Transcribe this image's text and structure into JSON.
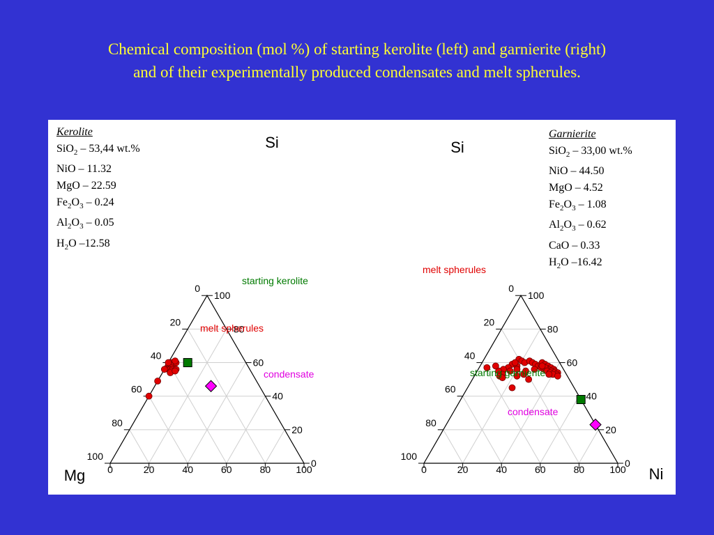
{
  "title": {
    "line1": "Chemical composition (mol %) of starting kerolite (left) and garnierite (right)",
    "line2": "and of their experimentally produced condensates and melt spherules."
  },
  "colors": {
    "background": "#3232d2",
    "title": "#ffff33",
    "melt": "#e00000",
    "starting": "#007a00",
    "condensate": "#ff00ff",
    "melt_label": "#e00000",
    "starting_label": "#007a00",
    "condensate_label": "#e000e0"
  },
  "kerolite": {
    "head": "Kerolite",
    "lines": [
      [
        "SiO",
        "2",
        " – 53,44 wt.%"
      ],
      [
        "NiO – 11.32",
        "",
        ""
      ],
      [
        "MgO – 22.59",
        "",
        ""
      ],
      [
        "Fe",
        "2",
        "O",
        "3",
        " – 0.24"
      ],
      [
        "Al",
        "2",
        "O",
        "3",
        " – 0.05"
      ],
      [
        "H",
        "2",
        "O –12.58"
      ]
    ]
  },
  "garnierite": {
    "head": "Garnierite",
    "lines": [
      [
        "SiO",
        "2",
        " – 33,00 wt.%"
      ],
      [
        "NiO – 44.50",
        "",
        ""
      ],
      [
        "MgO – 4.52",
        "",
        ""
      ],
      [
        "Fe",
        "2",
        "O",
        "3",
        " – 1.08"
      ],
      [
        "Al",
        "2",
        "O",
        "3",
        " – 0.62"
      ],
      [
        "CaO – 0.33",
        "",
        ""
      ],
      [
        "H",
        "2",
        "O –16.42"
      ]
    ]
  },
  "vertex_labels": {
    "si": "Si",
    "mg": "Mg",
    "ni": "Ni"
  },
  "left_tri": {
    "left_ticks": [
      "0",
      "20",
      "40",
      "60",
      "80",
      "100"
    ],
    "right_ticks": [
      "100",
      "80",
      "60",
      "40",
      "20",
      "0"
    ],
    "bottom_ticks": [
      "0",
      "20",
      "40",
      "60",
      "80",
      "100"
    ],
    "labels": {
      "starting": "starting kerolite",
      "melt": "melt spherules",
      "condensate": "condensate"
    }
  },
  "right_tri": {
    "left_ticks": [
      "0",
      "20",
      "40",
      "60",
      "80",
      "100"
    ],
    "right_ticks": [
      "100",
      "80",
      "60",
      "40",
      "20",
      "0"
    ],
    "bottom_ticks": [
      "0",
      "20",
      "40",
      "60",
      "80",
      "100"
    ],
    "labels": {
      "starting": "starting garnierite",
      "melt": "melt spherules",
      "condensate": "condensate"
    }
  },
  "chart_data": [
    {
      "type": "scatter",
      "name": "kerolite",
      "axes": [
        "Si",
        "Mg",
        "Ni"
      ],
      "starting": {
        "si": 60,
        "mg": 30,
        "ni": 10
      },
      "condensate": {
        "si": 46,
        "mg": 25,
        "ni": 29
      },
      "melt": [
        {
          "si": 60,
          "mg": 38,
          "ni": 2
        },
        {
          "si": 60,
          "mg": 39,
          "ni": 1
        },
        {
          "si": 59,
          "mg": 39,
          "ni": 2
        },
        {
          "si": 59,
          "mg": 40,
          "ni": 1
        },
        {
          "si": 58,
          "mg": 41,
          "ni": 1
        },
        {
          "si": 58,
          "mg": 39,
          "ni": 3
        },
        {
          "si": 57,
          "mg": 42,
          "ni": 1
        },
        {
          "si": 57,
          "mg": 41,
          "ni": 2
        },
        {
          "si": 57,
          "mg": 40,
          "ni": 3
        },
        {
          "si": 56,
          "mg": 42,
          "ni": 2
        },
        {
          "si": 56,
          "mg": 41,
          "ni": 3
        },
        {
          "si": 56,
          "mg": 40,
          "ni": 4
        },
        {
          "si": 55,
          "mg": 41,
          "ni": 4
        },
        {
          "si": 56,
          "mg": 38,
          "ni": 6
        },
        {
          "si": 60,
          "mg": 36,
          "ni": 4
        },
        {
          "si": 54,
          "mg": 42,
          "ni": 4
        },
        {
          "si": 55,
          "mg": 39,
          "ni": 6
        },
        {
          "si": 60,
          "mg": 40,
          "ni": 0
        },
        {
          "si": 56,
          "mg": 44,
          "ni": 0
        },
        {
          "si": 61,
          "mg": 36,
          "ni": 3
        },
        {
          "si": 49,
          "mg": 51,
          "ni": 0
        },
        {
          "si": 40,
          "mg": 60,
          "ni": 0
        }
      ]
    },
    {
      "type": "scatter",
      "name": "garnierite",
      "axes": [
        "Si",
        "Mg",
        "Ni"
      ],
      "starting": {
        "si": 38,
        "mg": 0,
        "ni": 62
      },
      "condensate": {
        "si": 23,
        "mg": 0,
        "ni": 77
      },
      "melt": [
        {
          "si": 62,
          "mg": 20,
          "ni": 18
        },
        {
          "si": 61,
          "mg": 19,
          "ni": 20
        },
        {
          "si": 60,
          "mg": 18,
          "ni": 22
        },
        {
          "si": 61,
          "mg": 15,
          "ni": 24
        },
        {
          "si": 60,
          "mg": 14,
          "ni": 26
        },
        {
          "si": 59,
          "mg": 13,
          "ni": 28
        },
        {
          "si": 58,
          "mg": 12,
          "ni": 30
        },
        {
          "si": 57,
          "mg": 11,
          "ni": 32
        },
        {
          "si": 56,
          "mg": 10,
          "ni": 34
        },
        {
          "si": 59,
          "mg": 10,
          "ni": 31
        },
        {
          "si": 58,
          "mg": 9,
          "ni": 33
        },
        {
          "si": 57,
          "mg": 8,
          "ni": 35
        },
        {
          "si": 56,
          "mg": 7,
          "ni": 37
        },
        {
          "si": 55,
          "mg": 6,
          "ni": 39
        },
        {
          "si": 60,
          "mg": 9,
          "ni": 31
        },
        {
          "si": 59,
          "mg": 8,
          "ni": 33
        },
        {
          "si": 58,
          "mg": 7,
          "ni": 35
        },
        {
          "si": 57,
          "mg": 6,
          "ni": 37
        },
        {
          "si": 56,
          "mg": 5,
          "ni": 39
        },
        {
          "si": 55,
          "mg": 5,
          "ni": 40
        },
        {
          "si": 54,
          "mg": 4,
          "ni": 42
        },
        {
          "si": 56,
          "mg": 8,
          "ni": 36
        },
        {
          "si": 55,
          "mg": 7,
          "ni": 38
        },
        {
          "si": 54,
          "mg": 6,
          "ni": 40
        },
        {
          "si": 53,
          "mg": 5,
          "ni": 42
        },
        {
          "si": 57,
          "mg": 9,
          "ni": 34
        },
        {
          "si": 58,
          "mg": 10,
          "ni": 32
        },
        {
          "si": 55,
          "mg": 9,
          "ni": 36
        },
        {
          "si": 54,
          "mg": 8,
          "ni": 38
        },
        {
          "si": 53,
          "mg": 7,
          "ni": 40
        },
        {
          "si": 52,
          "mg": 5,
          "ni": 43
        },
        {
          "si": 53,
          "mg": 9,
          "ni": 38
        },
        {
          "si": 59,
          "mg": 25,
          "ni": 16
        },
        {
          "si": 57,
          "mg": 28,
          "ni": 15
        },
        {
          "si": 58,
          "mg": 23,
          "ni": 19
        },
        {
          "si": 56,
          "mg": 31,
          "ni": 13
        },
        {
          "si": 56,
          "mg": 24,
          "ni": 20
        },
        {
          "si": 55,
          "mg": 28,
          "ni": 17
        },
        {
          "si": 53,
          "mg": 22,
          "ni": 25
        },
        {
          "si": 52,
          "mg": 26,
          "ni": 22
        },
        {
          "si": 53,
          "mg": 33,
          "ni": 14
        },
        {
          "si": 55,
          "mg": 34,
          "ni": 11
        },
        {
          "si": 58,
          "mg": 34,
          "ni": 8
        },
        {
          "si": 57,
          "mg": 39,
          "ni": 4
        },
        {
          "si": 52,
          "mg": 35,
          "ni": 13
        },
        {
          "si": 51,
          "mg": 34,
          "ni": 15
        },
        {
          "si": 50,
          "mg": 21,
          "ni": 29
        },
        {
          "si": 60,
          "mg": 23,
          "ni": 17
        },
        {
          "si": 55,
          "mg": 20,
          "ni": 25
        },
        {
          "si": 56,
          "mg": 15,
          "ni": 29
        },
        {
          "si": 45,
          "mg": 32,
          "ni": 23
        }
      ]
    }
  ]
}
